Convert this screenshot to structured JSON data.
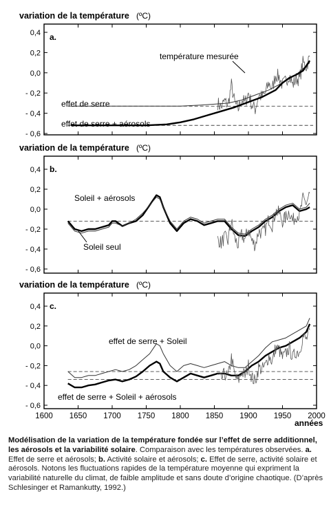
{
  "colors": {
    "measured": "#555555",
    "model": "#000000",
    "dashed": "#444444",
    "frame": "#000000"
  },
  "x_axis": {
    "label": "années",
    "ticks": [
      "1600",
      "1650",
      "1700",
      "1750",
      "1800",
      "1850",
      "1900",
      "1950",
      "2000"
    ],
    "range": [
      1600,
      2000
    ]
  },
  "y_axis": {
    "ticks": [
      "0,4",
      "0,2",
      "0,0",
      "- 0,2",
      "- 0,4",
      "- 0,6"
    ],
    "range": [
      -0.6,
      0.4
    ]
  },
  "panels": [
    {
      "ylabel": "variation de la température",
      "unit": "(ºC)",
      "letter": "a.",
      "labels": [
        "température mesurée",
        "effet de serre",
        "effet de serre + aérosols"
      ]
    },
    {
      "ylabel": "variation de la température",
      "unit": "(ºC)",
      "letter": "b.",
      "labels": [
        "Soleil + aérosols",
        "Soleil seul"
      ]
    },
    {
      "ylabel": "variation de la température",
      "unit": "(ºC)",
      "letter": "c.",
      "labels": [
        "effet de serre + Soleil",
        "effet de serre + Soleil + aérosols"
      ]
    }
  ],
  "caption": {
    "title": "Modélisation de la variation de la température fondée sur l’effet de serre additionnel, les aérosols et la variabilité solaire",
    "p1": ". Comparaison avec les températures observées. ",
    "a_label": "a.",
    "a_text": " Effet de serre et aérosols; ",
    "b_label": "b.",
    "b_text": " Activité solaire et aérosols; ",
    "c_label": "c.",
    "c_text": " Effet de serre, activité solaire et aérosols. Notons les fluctuations rapides de la température moyenne qui expriment la variabilité naturelle du climat, de faible amplitude et sans doute d’origine chaotique. (D’après Schlesinger et Ramankutty, 1992.)"
  },
  "chart_data": [
    {
      "type": "line",
      "title": "a.",
      "ylabel": "variation de la température (ºC)",
      "xlabel": "années",
      "xlim": [
        1600,
        2000
      ],
      "ylim": [
        -0.6,
        0.4
      ],
      "series": [
        {
          "name": "température mesurée",
          "style": "noisy",
          "x": [
            1855,
            1860,
            1865,
            1870,
            1875,
            1880,
            1885,
            1890,
            1895,
            1900,
            1905,
            1910,
            1915,
            1920,
            1925,
            1930,
            1935,
            1940,
            1945,
            1950,
            1955,
            1960,
            1965,
            1970,
            1975,
            1980,
            1985,
            1990
          ],
          "y": [
            -0.3,
            -0.34,
            -0.28,
            -0.32,
            -0.12,
            -0.3,
            -0.36,
            -0.26,
            -0.3,
            -0.2,
            -0.32,
            -0.36,
            -0.22,
            -0.24,
            -0.2,
            -0.1,
            -0.16,
            -0.02,
            -0.04,
            -0.12,
            -0.08,
            -0.02,
            -0.12,
            -0.06,
            -0.06,
            0.1,
            0.06,
            0.16
          ]
        },
        {
          "name": "effet de serre",
          "style": "solid-thin",
          "x": [
            1640,
            1700,
            1750,
            1800,
            1830,
            1850,
            1870,
            1890,
            1910,
            1930,
            1950,
            1970,
            1990
          ],
          "y": [
            -0.33,
            -0.33,
            -0.33,
            -0.33,
            -0.32,
            -0.31,
            -0.3,
            -0.27,
            -0.22,
            -0.17,
            -0.1,
            -0.02,
            0.1
          ]
        },
        {
          "name": "effet de serre + aérosols",
          "style": "solid-thick",
          "x": [
            1640,
            1700,
            1750,
            1780,
            1800,
            1820,
            1840,
            1860,
            1880,
            1900,
            1920,
            1940,
            1950,
            1960,
            1970,
            1980,
            1990
          ],
          "y": [
            -0.52,
            -0.52,
            -0.52,
            -0.51,
            -0.49,
            -0.46,
            -0.42,
            -0.38,
            -0.34,
            -0.29,
            -0.24,
            -0.17,
            -0.1,
            -0.05,
            -0.02,
            0.02,
            0.12
          ]
        }
      ],
      "reference_lines": [
        {
          "y": -0.33,
          "style": "dashed"
        },
        {
          "y": -0.52,
          "style": "dashed"
        }
      ]
    },
    {
      "type": "line",
      "title": "b.",
      "ylabel": "variation de la température (ºC)",
      "xlabel": "années",
      "xlim": [
        1600,
        2000
      ],
      "ylim": [
        -0.6,
        0.4
      ],
      "series": [
        {
          "name": "Soleil + aérosols",
          "style": "solid-thick",
          "x": [
            1635,
            1645,
            1655,
            1665,
            1675,
            1685,
            1695,
            1700,
            1705,
            1715,
            1725,
            1735,
            1745,
            1755,
            1765,
            1770,
            1775,
            1785,
            1795,
            1805,
            1815,
            1825,
            1835,
            1845,
            1855,
            1865,
            1875,
            1885,
            1895,
            1905,
            1915,
            1925,
            1935,
            1945,
            1955,
            1965,
            1975,
            1985,
            1990
          ],
          "y": [
            -0.12,
            -0.2,
            -0.22,
            -0.2,
            -0.2,
            -0.18,
            -0.16,
            -0.12,
            -0.12,
            -0.17,
            -0.14,
            -0.12,
            -0.06,
            0.04,
            0.14,
            0.12,
            0.02,
            -0.14,
            -0.22,
            -0.14,
            -0.1,
            -0.12,
            -0.16,
            -0.14,
            -0.12,
            -0.12,
            -0.2,
            -0.26,
            -0.27,
            -0.22,
            -0.18,
            -0.12,
            -0.08,
            -0.02,
            0.02,
            0.04,
            -0.02,
            0.0,
            0.02
          ]
        },
        {
          "name": "Soleil seul",
          "style": "solid-thin",
          "x": [
            1635,
            1645,
            1655,
            1665,
            1675,
            1685,
            1695,
            1700,
            1705,
            1715,
            1725,
            1735,
            1745,
            1755,
            1765,
            1770,
            1775,
            1785,
            1795,
            1805,
            1815,
            1825,
            1835,
            1845,
            1855,
            1865,
            1875,
            1885,
            1895,
            1905,
            1915,
            1925,
            1935,
            1945,
            1955,
            1965,
            1975,
            1985,
            1990
          ],
          "y": [
            -0.14,
            -0.22,
            -0.24,
            -0.22,
            -0.22,
            -0.2,
            -0.18,
            -0.14,
            -0.14,
            -0.17,
            -0.14,
            -0.1,
            -0.04,
            0.04,
            0.12,
            0.1,
            0.02,
            -0.12,
            -0.2,
            -0.12,
            -0.08,
            -0.1,
            -0.14,
            -0.12,
            -0.1,
            -0.1,
            -0.18,
            -0.24,
            -0.25,
            -0.2,
            -0.16,
            -0.1,
            -0.06,
            0.0,
            0.04,
            0.06,
            0.0,
            0.02,
            0.06
          ]
        },
        {
          "name": "température mesurée",
          "style": "noisy",
          "x": [
            1855,
            1860,
            1865,
            1870,
            1875,
            1880,
            1885,
            1890,
            1895,
            1900,
            1905,
            1910,
            1915,
            1920,
            1925,
            1930,
            1935,
            1940,
            1945,
            1950,
            1955,
            1960,
            1965,
            1970,
            1975,
            1980,
            1985,
            1990
          ],
          "y": [
            -0.3,
            -0.34,
            -0.28,
            -0.32,
            -0.12,
            -0.3,
            -0.36,
            -0.26,
            -0.3,
            -0.2,
            -0.32,
            -0.36,
            -0.22,
            -0.24,
            -0.2,
            -0.1,
            -0.16,
            -0.02,
            -0.04,
            -0.12,
            -0.08,
            -0.02,
            -0.12,
            -0.06,
            -0.06,
            0.1,
            0.06,
            0.16
          ]
        }
      ],
      "reference_lines": [
        {
          "y": -0.12,
          "style": "dashed"
        }
      ]
    },
    {
      "type": "line",
      "title": "c.",
      "ylabel": "variation de la température (ºC)",
      "xlabel": "années",
      "xlim": [
        1600,
        2000
      ],
      "ylim": [
        -0.6,
        0.4
      ],
      "series": [
        {
          "name": "effet de serre + Soleil",
          "style": "solid-thin",
          "x": [
            1635,
            1645,
            1655,
            1665,
            1675,
            1685,
            1695,
            1705,
            1715,
            1725,
            1735,
            1745,
            1755,
            1765,
            1770,
            1775,
            1785,
            1795,
            1805,
            1815,
            1825,
            1835,
            1845,
            1855,
            1865,
            1875,
            1885,
            1895,
            1905,
            1915,
            1925,
            1935,
            1945,
            1955,
            1965,
            1975,
            1985,
            1990
          ],
          "y": [
            -0.26,
            -0.32,
            -0.32,
            -0.3,
            -0.3,
            -0.28,
            -0.26,
            -0.24,
            -0.26,
            -0.24,
            -0.2,
            -0.14,
            -0.08,
            0.02,
            0.0,
            -0.08,
            -0.2,
            -0.26,
            -0.2,
            -0.18,
            -0.2,
            -0.22,
            -0.2,
            -0.18,
            -0.16,
            -0.2,
            -0.22,
            -0.22,
            -0.16,
            -0.1,
            -0.02,
            0.04,
            0.06,
            0.08,
            0.12,
            0.16,
            0.2,
            0.28
          ]
        },
        {
          "name": "effet de serre + Soleil + aérosols",
          "style": "solid-thick",
          "x": [
            1635,
            1645,
            1655,
            1665,
            1675,
            1685,
            1695,
            1705,
            1715,
            1725,
            1735,
            1745,
            1755,
            1765,
            1770,
            1775,
            1785,
            1795,
            1805,
            1815,
            1825,
            1835,
            1845,
            1855,
            1865,
            1875,
            1885,
            1895,
            1905,
            1915,
            1925,
            1935,
            1945,
            1955,
            1965,
            1975,
            1985,
            1990
          ],
          "y": [
            -0.38,
            -0.42,
            -0.42,
            -0.4,
            -0.39,
            -0.37,
            -0.35,
            -0.34,
            -0.36,
            -0.34,
            -0.31,
            -0.26,
            -0.2,
            -0.16,
            -0.18,
            -0.26,
            -0.32,
            -0.36,
            -0.32,
            -0.28,
            -0.3,
            -0.32,
            -0.3,
            -0.28,
            -0.28,
            -0.3,
            -0.3,
            -0.26,
            -0.2,
            -0.16,
            -0.1,
            -0.06,
            -0.02,
            0.0,
            0.04,
            0.08,
            0.14,
            0.22
          ]
        },
        {
          "name": "température mesurée",
          "style": "noisy",
          "x": [
            1855,
            1860,
            1865,
            1870,
            1875,
            1880,
            1885,
            1890,
            1895,
            1900,
            1905,
            1910,
            1915,
            1920,
            1925,
            1930,
            1935,
            1940,
            1945,
            1950,
            1955,
            1960,
            1965,
            1970,
            1975,
            1980,
            1985,
            1990
          ],
          "y": [
            -0.3,
            -0.34,
            -0.28,
            -0.32,
            -0.12,
            -0.3,
            -0.36,
            -0.26,
            -0.3,
            -0.2,
            -0.32,
            -0.36,
            -0.22,
            -0.24,
            -0.2,
            -0.1,
            -0.16,
            -0.02,
            -0.04,
            -0.12,
            -0.08,
            -0.02,
            -0.12,
            -0.06,
            -0.06,
            0.1,
            0.06,
            0.16
          ]
        }
      ],
      "reference_lines": [
        {
          "y": -0.26,
          "style": "dashed"
        },
        {
          "y": -0.34,
          "style": "dashed"
        }
      ]
    }
  ]
}
